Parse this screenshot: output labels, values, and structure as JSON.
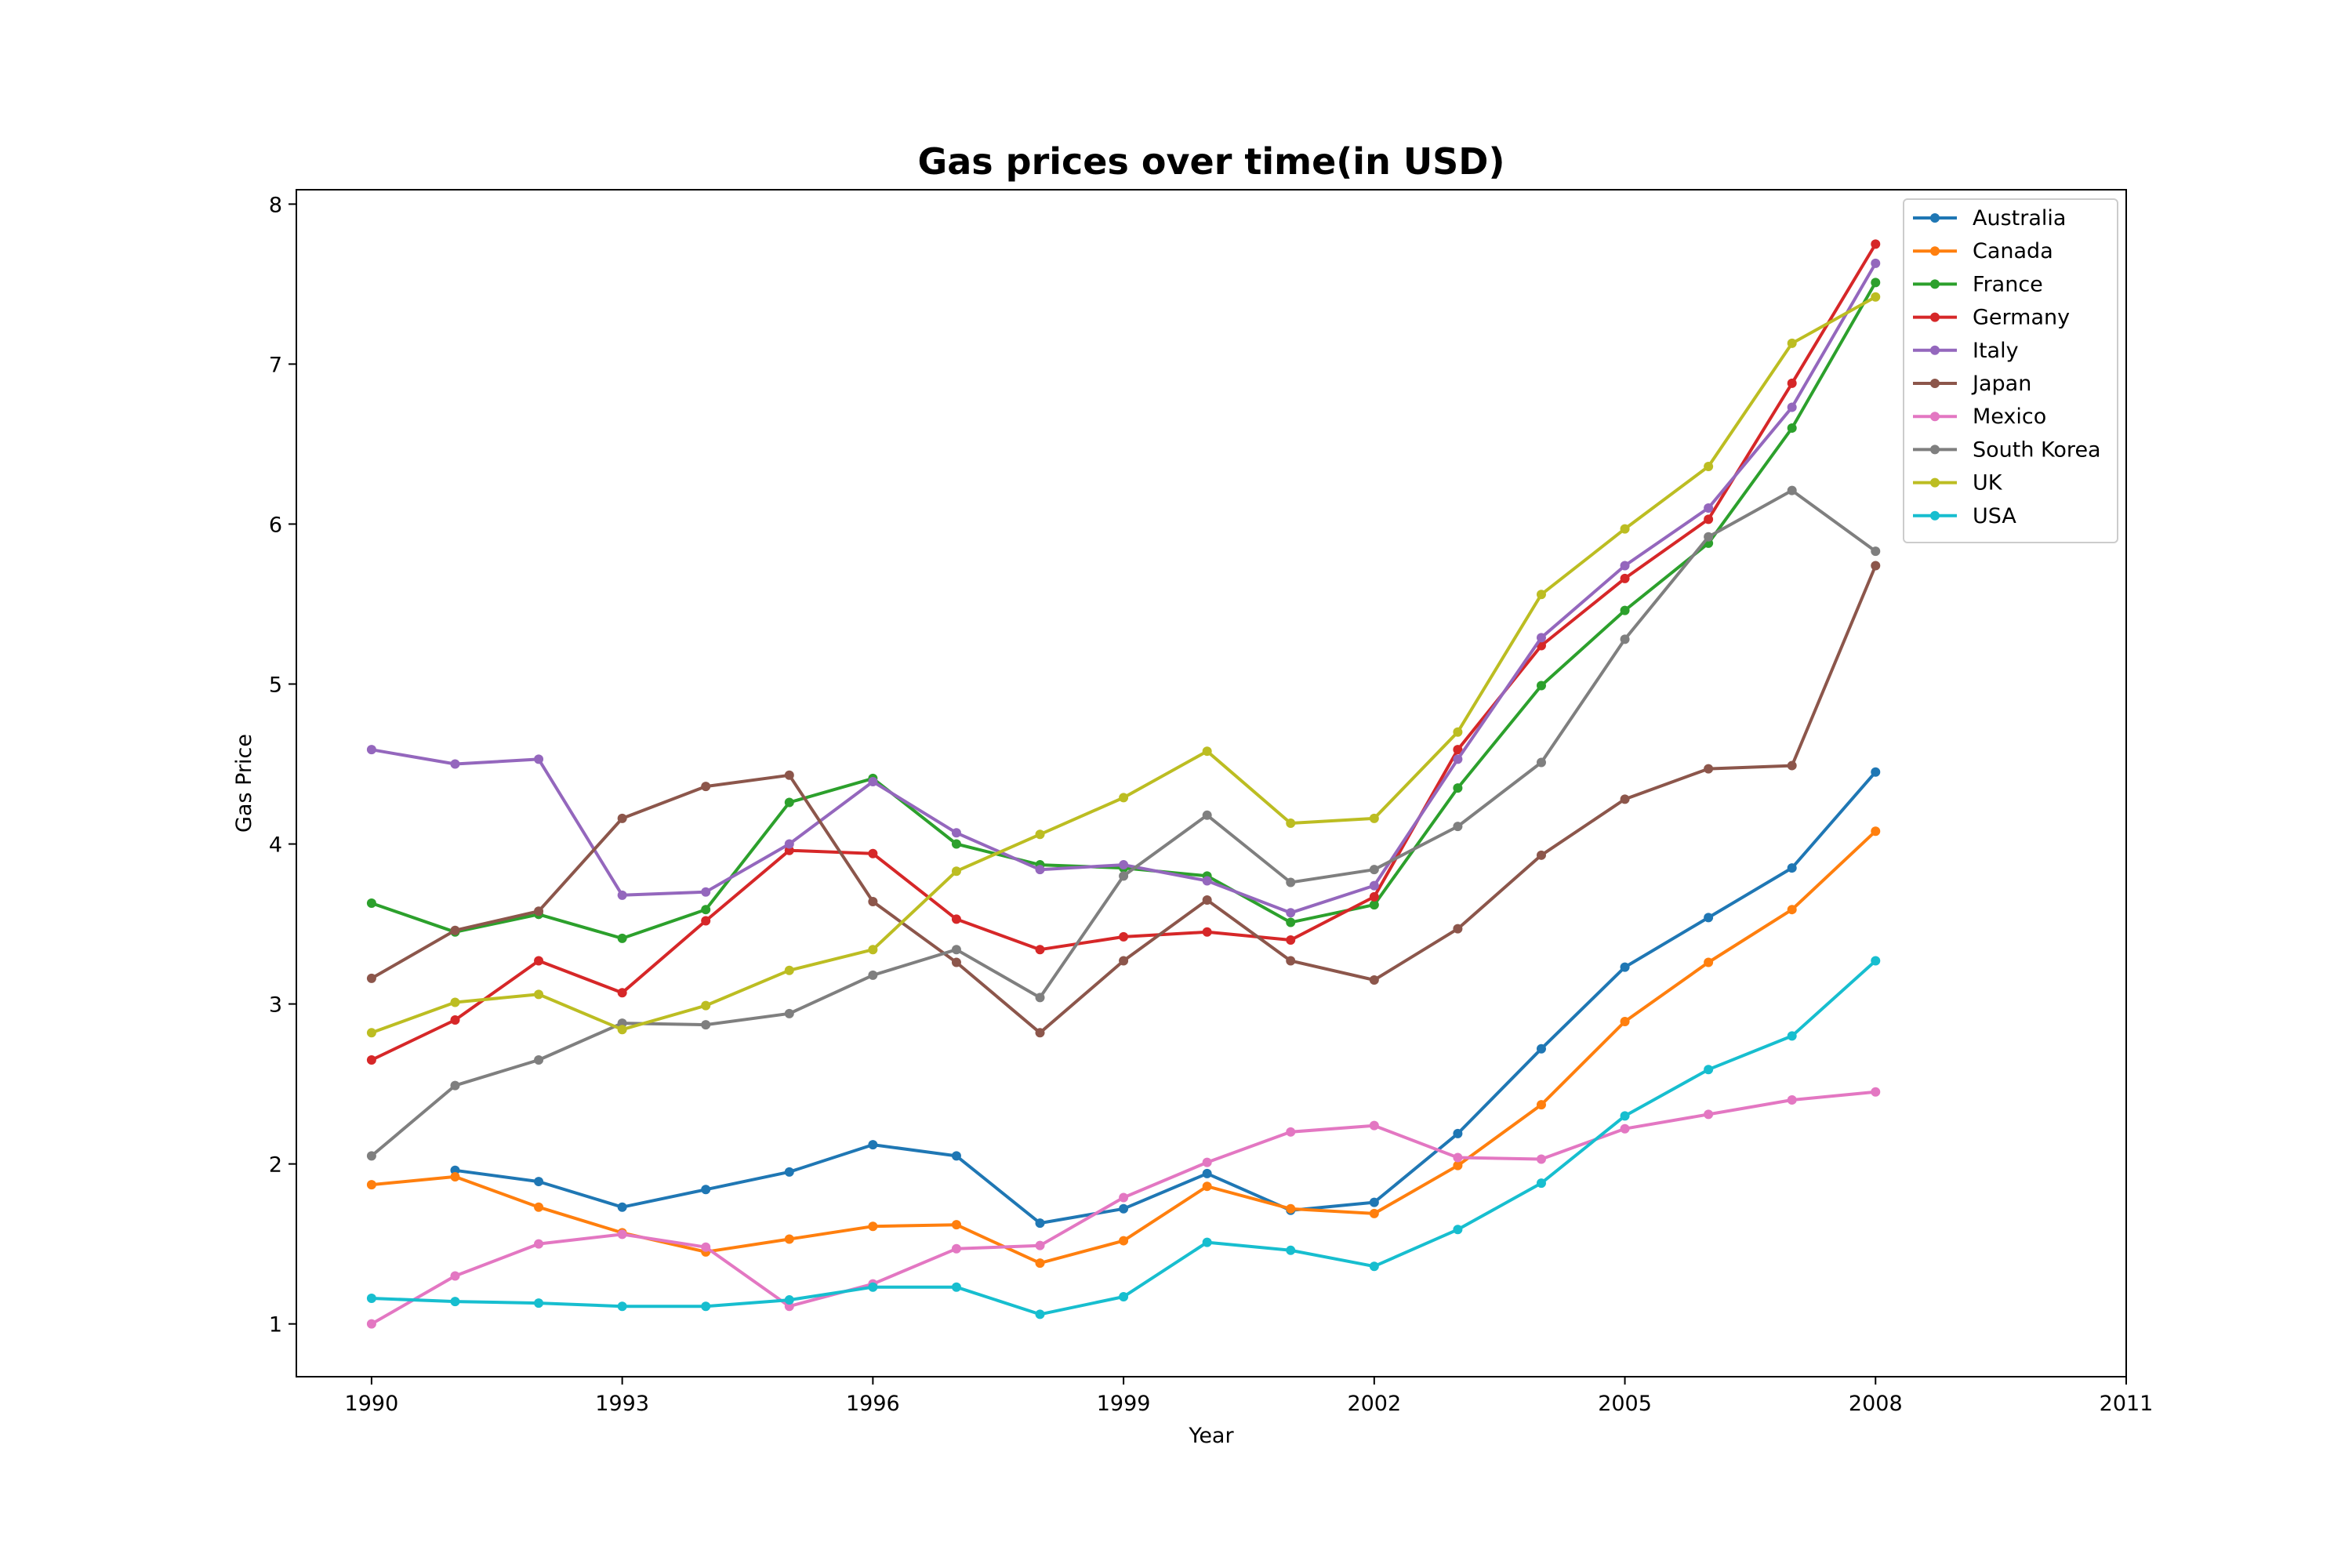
{
  "chart_data": {
    "type": "line",
    "title": "Gas prices over time(in USD)",
    "xlabel": "Year",
    "ylabel": "Gas Price",
    "xlim": [
      1989.1,
      2011
    ],
    "ylim": [
      0.67,
      8.09
    ],
    "x_ticks": [
      1990,
      1993,
      1996,
      1999,
      2002,
      2005,
      2008,
      2011
    ],
    "y_ticks": [
      1,
      2,
      3,
      4,
      5,
      6,
      7,
      8
    ],
    "grid": false,
    "legend": "top-right",
    "series": [
      {
        "name": "Australia",
        "color": "#1f77b4",
        "points": [
          [
            1991,
            1.96
          ],
          [
            1992,
            1.89
          ],
          [
            1993,
            1.73
          ],
          [
            1994,
            1.84
          ],
          [
            1995,
            1.95
          ],
          [
            1996,
            2.12
          ],
          [
            1997,
            2.05
          ],
          [
            1998,
            1.63
          ],
          [
            1999,
            1.72
          ],
          [
            2000,
            1.94
          ],
          [
            2001,
            1.71
          ],
          [
            2002,
            1.76
          ],
          [
            2003,
            2.19
          ],
          [
            2004,
            2.72
          ],
          [
            2005,
            3.23
          ],
          [
            2006,
            3.54
          ],
          [
            2007,
            3.85
          ],
          [
            2008,
            4.45
          ]
        ]
      },
      {
        "name": "Canada",
        "color": "#ff7f0e",
        "points": [
          [
            1990,
            1.87
          ],
          [
            1991,
            1.92
          ],
          [
            1992,
            1.73
          ],
          [
            1993,
            1.57
          ],
          [
            1994,
            1.45
          ],
          [
            1995,
            1.53
          ],
          [
            1996,
            1.61
          ],
          [
            1997,
            1.62
          ],
          [
            1998,
            1.38
          ],
          [
            1999,
            1.52
          ],
          [
            2000,
            1.86
          ],
          [
            2001,
            1.72
          ],
          [
            2002,
            1.69
          ],
          [
            2003,
            1.99
          ],
          [
            2004,
            2.37
          ],
          [
            2005,
            2.89
          ],
          [
            2006,
            3.26
          ],
          [
            2007,
            3.59
          ],
          [
            2008,
            4.08
          ]
        ]
      },
      {
        "name": "France",
        "color": "#2ca02c",
        "points": [
          [
            1990,
            3.63
          ],
          [
            1991,
            3.45
          ],
          [
            1992,
            3.56
          ],
          [
            1993,
            3.41
          ],
          [
            1994,
            3.59
          ],
          [
            1995,
            4.26
          ],
          [
            1996,
            4.41
          ],
          [
            1997,
            4.0
          ],
          [
            1998,
            3.87
          ],
          [
            1999,
            3.85
          ],
          [
            2000,
            3.8
          ],
          [
            2001,
            3.51
          ],
          [
            2002,
            3.62
          ],
          [
            2003,
            4.35
          ],
          [
            2004,
            4.99
          ],
          [
            2005,
            5.46
          ],
          [
            2006,
            5.88
          ],
          [
            2007,
            6.6
          ],
          [
            2008,
            7.51
          ]
        ]
      },
      {
        "name": "Germany",
        "color": "#d62728",
        "points": [
          [
            1990,
            2.65
          ],
          [
            1991,
            2.9
          ],
          [
            1992,
            3.27
          ],
          [
            1993,
            3.07
          ],
          [
            1994,
            3.52
          ],
          [
            1995,
            3.96
          ],
          [
            1996,
            3.94
          ],
          [
            1997,
            3.53
          ],
          [
            1998,
            3.34
          ],
          [
            1999,
            3.42
          ],
          [
            2000,
            3.45
          ],
          [
            2001,
            3.4
          ],
          [
            2002,
            3.67
          ],
          [
            2003,
            4.59
          ],
          [
            2004,
            5.24
          ],
          [
            2005,
            5.66
          ],
          [
            2006,
            6.03
          ],
          [
            2007,
            6.88
          ],
          [
            2008,
            7.75
          ]
        ]
      },
      {
        "name": "Italy",
        "color": "#9467bd",
        "points": [
          [
            1990,
            4.59
          ],
          [
            1991,
            4.5
          ],
          [
            1992,
            4.53
          ],
          [
            1993,
            3.68
          ],
          [
            1994,
            3.7
          ],
          [
            1995,
            4.0
          ],
          [
            1996,
            4.39
          ],
          [
            1997,
            4.07
          ],
          [
            1998,
            3.84
          ],
          [
            1999,
            3.87
          ],
          [
            2000,
            3.77
          ],
          [
            2001,
            3.57
          ],
          [
            2002,
            3.74
          ],
          [
            2003,
            4.53
          ],
          [
            2004,
            5.29
          ],
          [
            2005,
            5.74
          ],
          [
            2006,
            6.1
          ],
          [
            2007,
            6.73
          ],
          [
            2008,
            7.63
          ]
        ]
      },
      {
        "name": "Japan",
        "color": "#8c564b",
        "points": [
          [
            1990,
            3.16
          ],
          [
            1991,
            3.46
          ],
          [
            1992,
            3.58
          ],
          [
            1993,
            4.16
          ],
          [
            1994,
            4.36
          ],
          [
            1995,
            4.43
          ],
          [
            1996,
            3.64
          ],
          [
            1997,
            3.26
          ],
          [
            1998,
            2.82
          ],
          [
            1999,
            3.27
          ],
          [
            2000,
            3.65
          ],
          [
            2001,
            3.27
          ],
          [
            2002,
            3.15
          ],
          [
            2003,
            3.47
          ],
          [
            2004,
            3.93
          ],
          [
            2005,
            4.28
          ],
          [
            2006,
            4.47
          ],
          [
            2007,
            4.49
          ],
          [
            2008,
            5.74
          ]
        ]
      },
      {
        "name": "Mexico",
        "color": "#e377c2",
        "points": [
          [
            1990,
            1.0
          ],
          [
            1991,
            1.3
          ],
          [
            1992,
            1.5
          ],
          [
            1993,
            1.56
          ],
          [
            1994,
            1.48
          ],
          [
            1995,
            1.11
          ],
          [
            1996,
            1.25
          ],
          [
            1997,
            1.47
          ],
          [
            1998,
            1.49
          ],
          [
            1999,
            1.79
          ],
          [
            2000,
            2.01
          ],
          [
            2001,
            2.2
          ],
          [
            2002,
            2.24
          ],
          [
            2003,
            2.04
          ],
          [
            2004,
            2.03
          ],
          [
            2005,
            2.22
          ],
          [
            2006,
            2.31
          ],
          [
            2007,
            2.4
          ],
          [
            2008,
            2.45
          ]
        ]
      },
      {
        "name": "South Korea",
        "color": "#7f7f7f",
        "points": [
          [
            1990,
            2.05
          ],
          [
            1991,
            2.49
          ],
          [
            1992,
            2.65
          ],
          [
            1993,
            2.88
          ],
          [
            1994,
            2.87
          ],
          [
            1995,
            2.94
          ],
          [
            1996,
            3.18
          ],
          [
            1997,
            3.34
          ],
          [
            1998,
            3.04
          ],
          [
            1999,
            3.8
          ],
          [
            2000,
            4.18
          ],
          [
            2001,
            3.76
          ],
          [
            2002,
            3.84
          ],
          [
            2003,
            4.11
          ],
          [
            2004,
            4.51
          ],
          [
            2005,
            5.28
          ],
          [
            2006,
            5.92
          ],
          [
            2007,
            6.21
          ],
          [
            2008,
            5.83
          ]
        ]
      },
      {
        "name": "UK",
        "color": "#bcbd22",
        "points": [
          [
            1990,
            2.82
          ],
          [
            1991,
            3.01
          ],
          [
            1992,
            3.06
          ],
          [
            1993,
            2.84
          ],
          [
            1994,
            2.99
          ],
          [
            1995,
            3.21
          ],
          [
            1996,
            3.34
          ],
          [
            1997,
            3.83
          ],
          [
            1998,
            4.06
          ],
          [
            1999,
            4.29
          ],
          [
            2000,
            4.58
          ],
          [
            2001,
            4.13
          ],
          [
            2002,
            4.16
          ],
          [
            2003,
            4.7
          ],
          [
            2004,
            5.56
          ],
          [
            2005,
            5.97
          ],
          [
            2006,
            6.36
          ],
          [
            2007,
            7.13
          ],
          [
            2008,
            7.42
          ]
        ]
      },
      {
        "name": "USA",
        "color": "#17becf",
        "points": [
          [
            1990,
            1.16
          ],
          [
            1991,
            1.14
          ],
          [
            1992,
            1.13
          ],
          [
            1993,
            1.11
          ],
          [
            1994,
            1.11
          ],
          [
            1995,
            1.15
          ],
          [
            1996,
            1.23
          ],
          [
            1997,
            1.23
          ],
          [
            1998,
            1.06
          ],
          [
            1999,
            1.17
          ],
          [
            2000,
            1.51
          ],
          [
            2001,
            1.46
          ],
          [
            2002,
            1.36
          ],
          [
            2003,
            1.59
          ],
          [
            2004,
            1.88
          ],
          [
            2005,
            2.3
          ],
          [
            2006,
            2.59
          ],
          [
            2007,
            2.8
          ],
          [
            2008,
            3.27
          ]
        ]
      }
    ]
  }
}
